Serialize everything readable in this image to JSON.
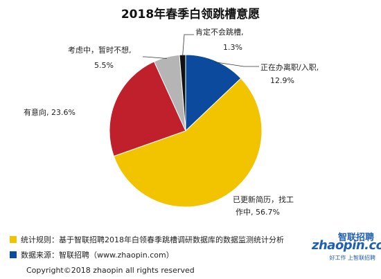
{
  "chart_data": {
    "type": "pie",
    "title": "2018年春季白领跳槽意愿",
    "slices": [
      {
        "label": "正在办离职/入职,",
        "value_label": "12.9%",
        "value": 12.9,
        "color": "#0b4a9c"
      },
      {
        "label": "已更新简历，找工",
        "label2": "作中,",
        "value_label": "56.7%",
        "value": 56.7,
        "color": "#f2c400"
      },
      {
        "label": "有意向,",
        "value_label": "23.6%",
        "value": 23.6,
        "color": "#c0202b"
      },
      {
        "label": "考虑中，暂时不想,",
        "value_label": "5.5%",
        "value": 5.5,
        "color": "#b5b5b5"
      },
      {
        "label": "肯定不会跳槽,",
        "value_label": "1.3%",
        "value": 1.3,
        "color": "#111111"
      }
    ]
  },
  "footer": {
    "note1": "统计规则：基于智联招聘2018年白领春季跳槽调研数据库的数据监测统计分析",
    "note1_color": "#f2c400",
    "note2": "数据来源：智联招聘（www.zhaopin.com）",
    "note2_color": "#0b4a9c",
    "copyright": "Copyright©2018 zhaopin all rights reserved"
  },
  "logo": {
    "top": "智联招聘",
    "main": "zhaopin.com",
    "tag": "好工作 上智联招聘"
  }
}
